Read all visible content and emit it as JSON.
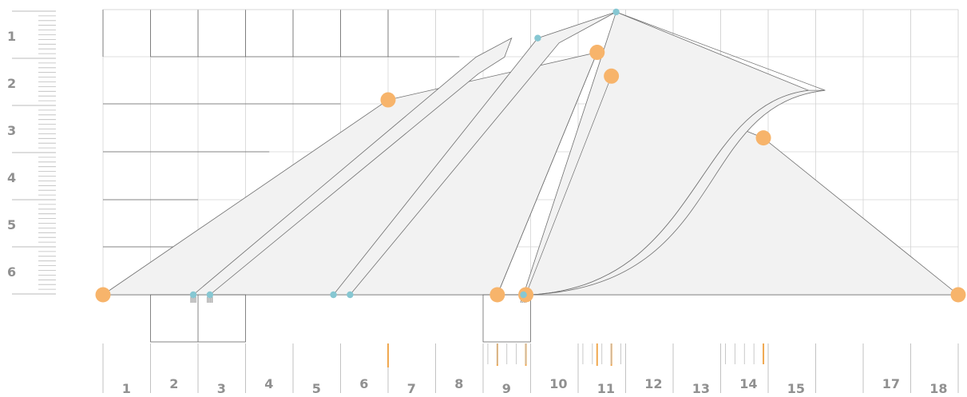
{
  "chart_data": {
    "type": "diagram",
    "x_tick_labels": [
      "1",
      "2",
      "3",
      "4",
      "5",
      "6",
      "7",
      "8",
      "9",
      "10",
      "11",
      "12",
      "13",
      "14",
      "15",
      "17",
      "18"
    ],
    "y_tick_labels": [
      "1",
      "2",
      "3",
      "4",
      "5",
      "6"
    ],
    "orange_nodes": [
      {
        "x": 0,
        "y": 0
      },
      {
        "x": 6.0,
        "y": 4.1
      },
      {
        "x": 10.4,
        "y": 5.1
      },
      {
        "x": 10.7,
        "y": 4.6
      },
      {
        "x": 13.9,
        "y": 3.3
      },
      {
        "x": 18.0,
        "y": 0
      },
      {
        "x": 8.3,
        "y": 0
      },
      {
        "x": 8.9,
        "y": 0
      }
    ],
    "blue_nodes": [
      {
        "x": 1.9,
        "y": 0
      },
      {
        "x": 2.25,
        "y": 0
      },
      {
        "x": 4.85,
        "y": 0
      },
      {
        "x": 5.2,
        "y": 0
      },
      {
        "x": 9.15,
        "y": 5.4
      },
      {
        "x": 10.8,
        "y": 5.95
      },
      {
        "x": 8.85,
        "y": 0
      }
    ],
    "colors": {
      "node_orange": "#f7b46b",
      "node_blue": "#86c7d2",
      "tick_orange": "#f0a850",
      "grid": "#d4d4d4",
      "grid_dark": "#666666",
      "fill": "#f2f2f2",
      "outline": "#707070",
      "label": "#909090"
    }
  }
}
